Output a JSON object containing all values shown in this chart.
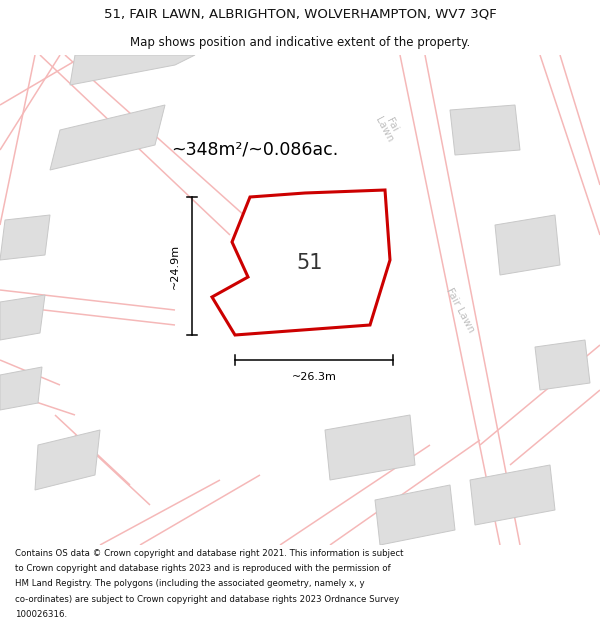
{
  "title_line1": "51, FAIR LAWN, ALBRIGHTON, WOLVERHAMPTON, WV7 3QF",
  "title_line2": "Map shows position and indicative extent of the property.",
  "area_label": "~348m²/~0.086ac.",
  "dim_v": "~24.9m",
  "dim_h": "~26.3m",
  "house_number": "51",
  "map_bg": "#f2f2f2",
  "building_color": "#dedede",
  "building_outline": "#c8c8c8",
  "road_color": "#f5b8b8",
  "red_poly_color": "#cc0000",
  "red_poly_fill": "#ffffff",
  "street_label_color": "#c0c0c0",
  "footer_lines": [
    "Contains OS data © Crown copyright and database right 2021. This information is subject",
    "to Crown copyright and database rights 2023 and is reproduced with the permission of",
    "HM Land Registry. The polygons (including the associated geometry, namely x, y",
    "co-ordinates) are subject to Crown copyright and database rights 2023 Ordnance Survey",
    "100026316."
  ]
}
